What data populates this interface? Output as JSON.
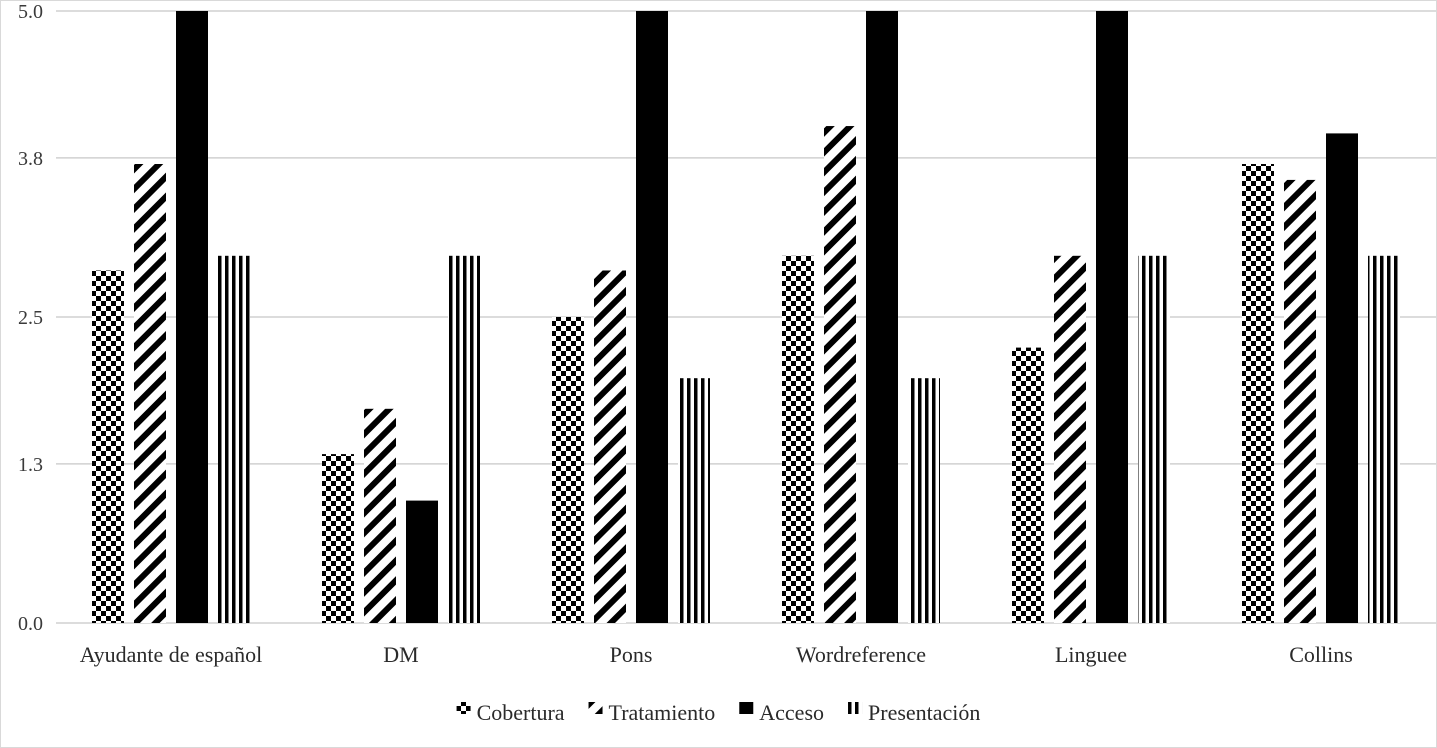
{
  "chart_data": {
    "type": "bar",
    "categories": [
      "Ayudante de español",
      "DM",
      "Pons",
      "Wordreference",
      "Linguee",
      "Collins"
    ],
    "series": [
      {
        "name": "Cobertura",
        "pattern": "checker",
        "values": [
          2.88,
          1.38,
          2.5,
          3.0,
          2.25,
          3.75
        ]
      },
      {
        "name": "Tratamiento",
        "pattern": "diagonal",
        "values": [
          3.75,
          1.75,
          2.88,
          4.06,
          3.0,
          3.62
        ]
      },
      {
        "name": "Acceso",
        "pattern": "solid",
        "values": [
          5.0,
          1.0,
          5.0,
          5.0,
          5.0,
          4.0
        ]
      },
      {
        "name": "Presentación",
        "pattern": "vertical",
        "values": [
          3.0,
          3.0,
          2.0,
          2.0,
          3.0,
          3.0
        ]
      }
    ],
    "yticks": [
      "0.0",
      "1.3",
      "2.5",
      "3.8",
      "5.0"
    ],
    "ylim": [
      0,
      5
    ],
    "grid": true,
    "legend": "bottom",
    "xlabel": "",
    "ylabel": "",
    "title": ""
  }
}
